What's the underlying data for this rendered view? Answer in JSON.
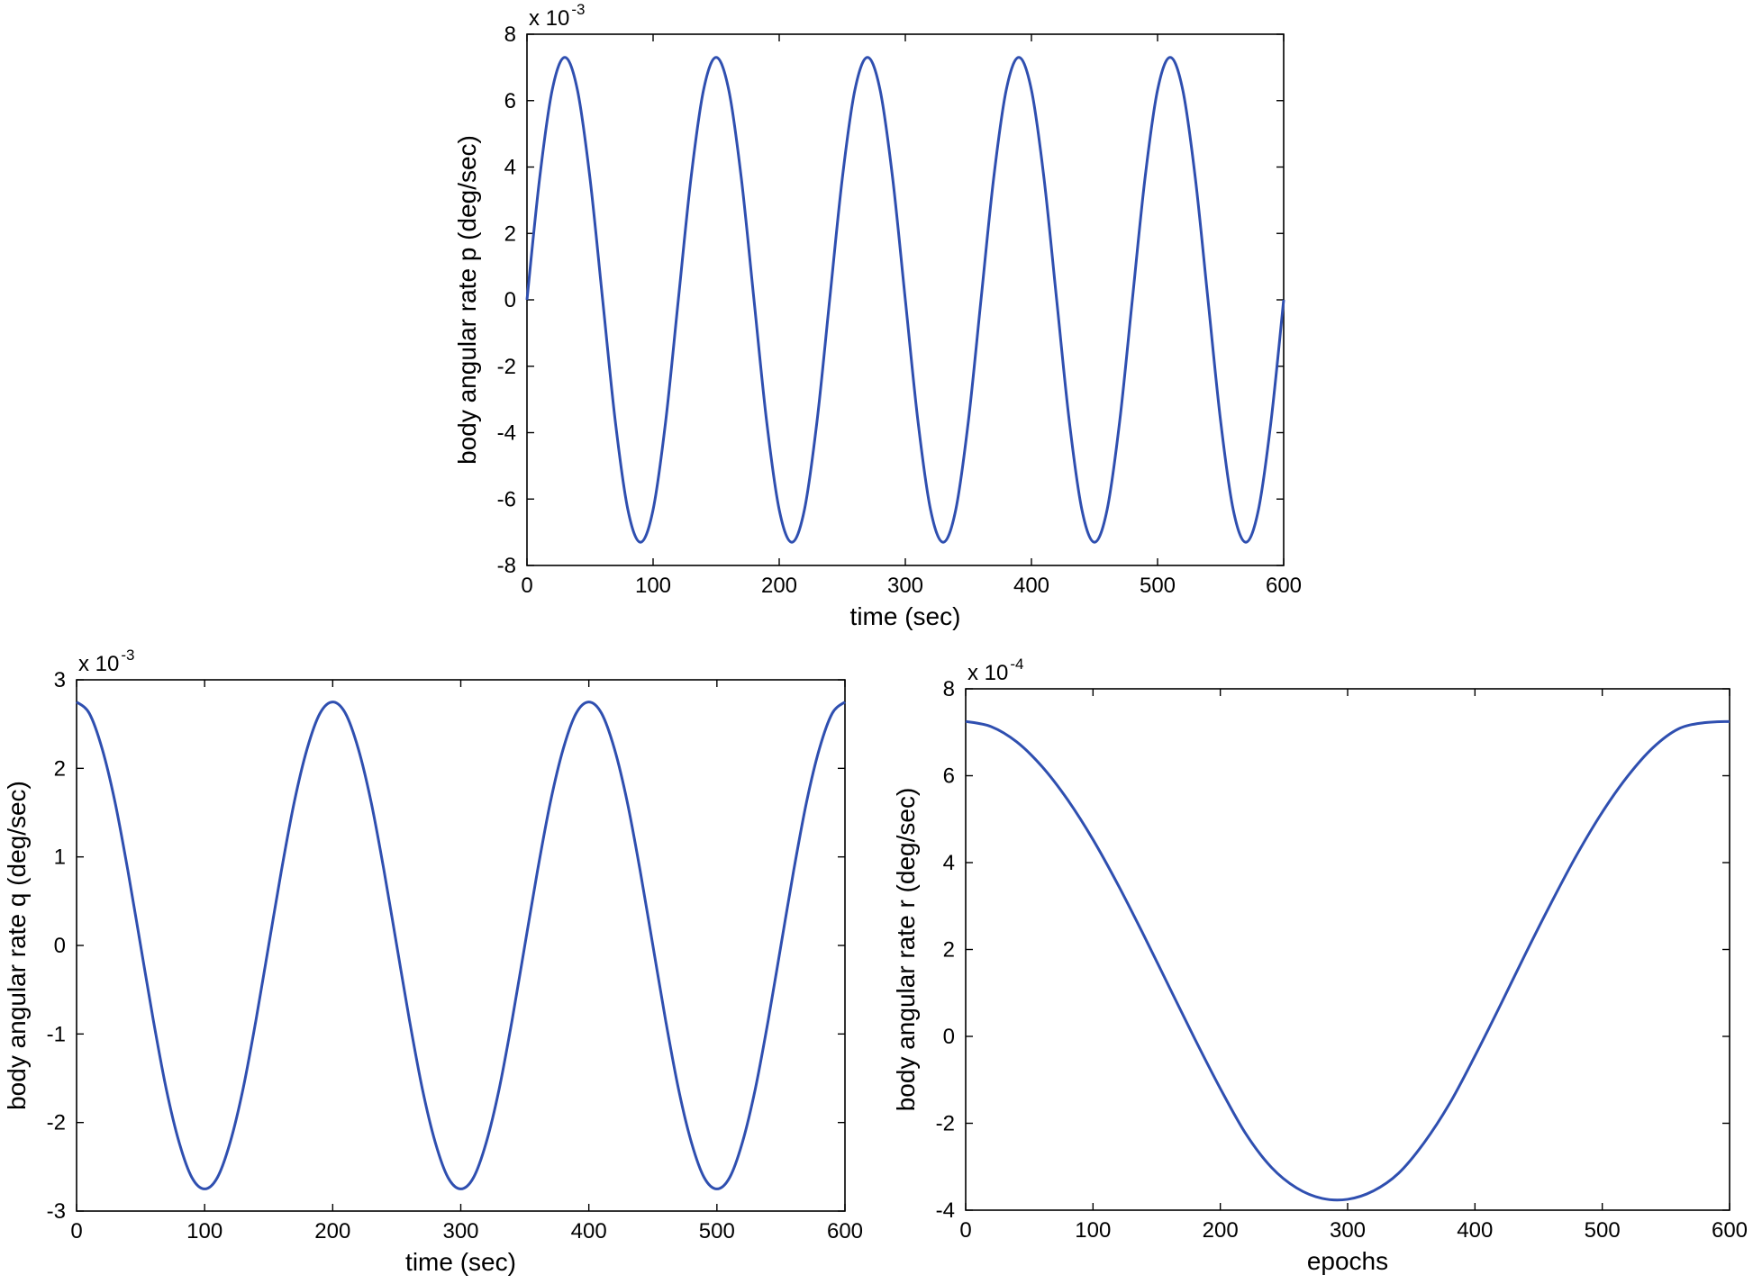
{
  "colors": {
    "series": "#2f4fb0",
    "axis": "#000000",
    "background": "#ffffff"
  },
  "chart_data": [
    {
      "id": "p",
      "type": "line",
      "xlabel": "time (sec)",
      "ylabel": "body angular rate p (deg/sec)",
      "y_multiplier": "x 10",
      "y_exponent": "-3",
      "xlim": [
        0,
        600
      ],
      "ylim": [
        -8,
        8
      ],
      "xticks": [
        0,
        100,
        200,
        300,
        400,
        500,
        600
      ],
      "yticks": [
        -8,
        -6,
        -4,
        -2,
        0,
        2,
        4,
        6,
        8
      ],
      "grid": false,
      "legend": false,
      "series": [
        {
          "x": [
            0,
            10,
            20,
            30,
            40,
            50,
            60,
            70,
            80,
            90,
            100,
            110,
            120,
            130,
            140,
            150,
            160,
            170,
            180,
            190,
            200,
            210,
            220,
            230,
            240,
            250,
            260,
            270,
            280,
            290,
            300,
            310,
            320,
            330,
            340,
            350,
            360,
            370,
            380,
            390,
            400,
            410,
            420,
            430,
            440,
            450,
            460,
            470,
            480,
            490,
            500,
            510,
            520,
            530,
            540,
            550,
            560,
            570,
            580,
            590,
            600
          ],
          "y": [
            0,
            3.65,
            6.32,
            7.3,
            6.32,
            3.65,
            0,
            -3.65,
            -6.32,
            -7.3,
            -6.32,
            -3.65,
            0,
            3.65,
            6.32,
            7.3,
            6.32,
            3.65,
            0,
            -3.65,
            -6.32,
            -7.3,
            -6.32,
            -3.65,
            0,
            3.65,
            6.32,
            7.3,
            6.32,
            3.65,
            0,
            -3.65,
            -6.32,
            -7.3,
            -6.32,
            -3.65,
            0,
            3.65,
            6.32,
            7.3,
            6.32,
            3.65,
            0,
            -3.65,
            -6.32,
            -7.3,
            -6.32,
            -3.65,
            0,
            3.65,
            6.32,
            7.3,
            6.32,
            3.65,
            0,
            -3.65,
            -6.32,
            -7.3,
            -6.32,
            -3.65,
            0
          ]
        }
      ]
    },
    {
      "id": "q",
      "type": "line",
      "xlabel": "time (sec)",
      "ylabel": "body angular rate q (deg/sec)",
      "y_multiplier": "x 10",
      "y_exponent": "-3",
      "xlim": [
        0,
        600
      ],
      "ylim": [
        -3,
        3
      ],
      "xticks": [
        0,
        100,
        200,
        300,
        400,
        500,
        600
      ],
      "yticks": [
        -3,
        -2,
        -1,
        0,
        1,
        2,
        3
      ],
      "grid": false,
      "legend": false,
      "series": [
        {
          "x": [
            0,
            10,
            20,
            30,
            40,
            50,
            60,
            70,
            80,
            90,
            100,
            110,
            120,
            130,
            140,
            150,
            160,
            170,
            180,
            190,
            200,
            210,
            220,
            230,
            240,
            250,
            260,
            270,
            280,
            290,
            300,
            310,
            320,
            330,
            340,
            350,
            360,
            370,
            380,
            390,
            400,
            410,
            420,
            430,
            440,
            450,
            460,
            470,
            480,
            490,
            500,
            510,
            520,
            530,
            540,
            550,
            560,
            570,
            580,
            590,
            600
          ],
          "y": [
            2.75,
            2.62,
            2.22,
            1.62,
            0.85,
            0,
            -0.85,
            -1.62,
            -2.22,
            -2.62,
            -2.75,
            -2.62,
            -2.22,
            -1.62,
            -0.85,
            0,
            0.85,
            1.62,
            2.22,
            2.62,
            2.75,
            2.62,
            2.22,
            1.62,
            0.85,
            0,
            -0.85,
            -1.62,
            -2.22,
            -2.62,
            -2.75,
            -2.62,
            -2.22,
            -1.62,
            -0.85,
            0,
            0.85,
            1.62,
            2.22,
            2.62,
            2.75,
            2.62,
            2.22,
            1.62,
            0.85,
            0,
            -0.85,
            -1.62,
            -2.22,
            -2.62,
            -2.75,
            -2.62,
            -2.22,
            -1.62,
            -0.85,
            0,
            0.85,
            1.62,
            2.22,
            2.62,
            2.75
          ]
        }
      ]
    },
    {
      "id": "r",
      "type": "line",
      "xlabel": "epochs",
      "ylabel": "body angular rate r (deg/sec)",
      "y_multiplier": "x 10",
      "y_exponent": "-4",
      "xlim": [
        0,
        600
      ],
      "ylim": [
        -4,
        8
      ],
      "xticks": [
        0,
        100,
        200,
        300,
        400,
        500,
        600
      ],
      "yticks": [
        -4,
        -2,
        0,
        2,
        4,
        6,
        8
      ],
      "grid": false,
      "legend": false,
      "series": [
        {
          "x": [
            0,
            20,
            40,
            60,
            80,
            100,
            120,
            140,
            160,
            180,
            200,
            220,
            240,
            260,
            280,
            300,
            320,
            340,
            360,
            380,
            400,
            420,
            440,
            460,
            480,
            500,
            520,
            540,
            560,
            580,
            600
          ],
          "y": [
            7.25,
            7.13,
            6.78,
            6.21,
            5.45,
            4.53,
            3.47,
            2.32,
            1.13,
            -0.06,
            -1.2,
            -2.24,
            -3.01,
            -3.49,
            -3.73,
            -3.75,
            -3.56,
            -3.15,
            -2.45,
            -1.55,
            -0.45,
            0.72,
            1.92,
            3.08,
            4.18,
            5.16,
            5.99,
            6.65,
            7.08,
            7.22,
            7.25
          ]
        }
      ]
    }
  ]
}
